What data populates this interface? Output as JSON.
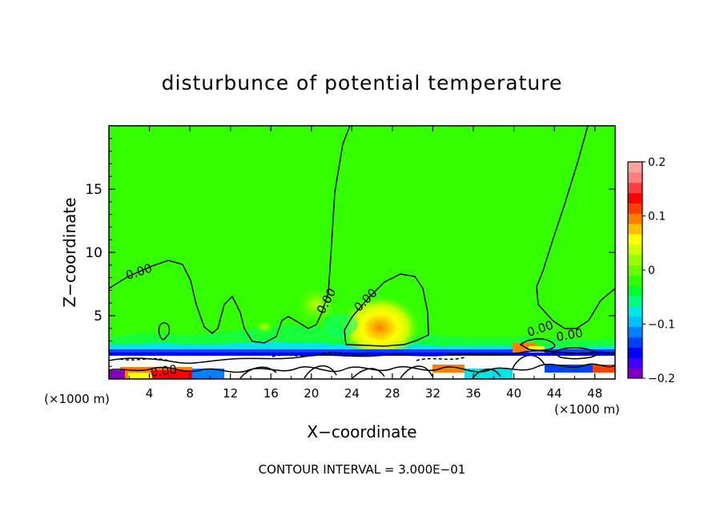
{
  "chart_data": {
    "type": "heatmap",
    "title": "disturbunce of potential temperature",
    "xlabel": "X−coordinate",
    "ylabel": "Z−coordinate",
    "x_unit": "(×1000 m)",
    "x_unit_right": "(×1000 m)",
    "xlim": [
      0,
      50
    ],
    "ylim": [
      0,
      20
    ],
    "x_ticks": [
      4,
      8,
      12,
      16,
      20,
      24,
      28,
      32,
      36,
      40,
      44,
      48
    ],
    "y_ticks": [
      5,
      10,
      15
    ],
    "colorbar": {
      "range": [
        -0.2,
        0.2
      ],
      "tick_labels": [
        "0.2",
        "0.1",
        "0",
        "−0.1",
        "−0.2"
      ],
      "tick_values": [
        0.2,
        0.1,
        0,
        -0.1,
        -0.2
      ],
      "colors": [
        "#7f00bf",
        "#3f00ff",
        "#0000ff",
        "#0040ff",
        "#0080ff",
        "#00bfff",
        "#00e6e6",
        "#00ff80",
        "#00ff33",
        "#33ff00",
        "#66ff00",
        "#99ff00",
        "#ccff00",
        "#ffff00",
        "#ffbf00",
        "#ff8000",
        "#ff4000",
        "#ff0000",
        "#ff3f3f",
        "#ff7f7f",
        "#ffa0a0"
      ]
    },
    "contour_labels": [
      "0.00",
      "0.00",
      "0.00",
      "0.00",
      "0.00",
      "0.00"
    ],
    "footer": "CONTOUR INTERVAL = 3.000E−01",
    "background_value": 0.0,
    "features": [
      {
        "name": "warm-anomaly",
        "x": 27,
        "z": 3.8,
        "value": 0.08
      },
      {
        "name": "weak-warm",
        "x": 20,
        "z": 6,
        "value": 0.03
      },
      {
        "name": "cool-layer",
        "x": 25,
        "z": 2.3,
        "value": -0.1
      },
      {
        "name": "boundary-layer",
        "x": 25,
        "z": 1.0,
        "value": 0.0
      },
      {
        "name": "surface-warm",
        "x": 7,
        "z": 0.5,
        "value": 0.15
      },
      {
        "name": "surface-warm-2",
        "x": 42,
        "z": 2.5,
        "value": 0.12
      }
    ]
  }
}
